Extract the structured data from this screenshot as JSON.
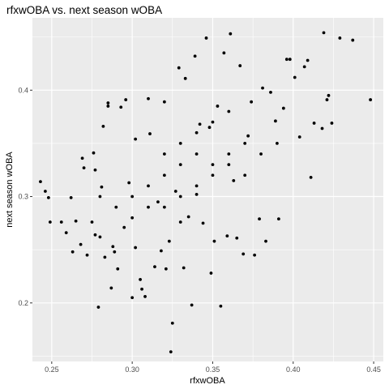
{
  "chart_data": {
    "type": "scatter",
    "title": "rfxwOBA vs. next season wOBA",
    "xlabel": "rfxwOBA",
    "ylabel": "next season wOBA",
    "xlim": [
      0.238,
      0.456
    ],
    "ylim": [
      0.145,
      0.468
    ],
    "xticks": [
      0.25,
      0.3,
      0.35,
      0.4,
      0.45
    ],
    "xtick_labels": [
      "0.25",
      "0.30",
      "0.35",
      "0.40",
      "0.45"
    ],
    "yticks": [
      0.2,
      0.3,
      0.4
    ],
    "ytick_labels": [
      "0.2",
      "0.3",
      "0.4"
    ],
    "grid": true,
    "background": "#ebebeb",
    "grid_color": "#ffffff",
    "point_color": "#000000",
    "points": [
      [
        0.243,
        0.314
      ],
      [
        0.246,
        0.305
      ],
      [
        0.248,
        0.299
      ],
      [
        0.249,
        0.276
      ],
      [
        0.256,
        0.276
      ],
      [
        0.259,
        0.266
      ],
      [
        0.262,
        0.299
      ],
      [
        0.263,
        0.248
      ],
      [
        0.265,
        0.277
      ],
      [
        0.268,
        0.255
      ],
      [
        0.269,
        0.336
      ],
      [
        0.27,
        0.327
      ],
      [
        0.272,
        0.245
      ],
      [
        0.275,
        0.276
      ],
      [
        0.276,
        0.341
      ],
      [
        0.277,
        0.325
      ],
      [
        0.277,
        0.264
      ],
      [
        0.279,
        0.196
      ],
      [
        0.28,
        0.262
      ],
      [
        0.281,
        0.309
      ],
      [
        0.282,
        0.366
      ],
      [
        0.283,
        0.243
      ],
      [
        0.285,
        0.385
      ],
      [
        0.285,
        0.388
      ],
      [
        0.287,
        0.214
      ],
      [
        0.288,
        0.253
      ],
      [
        0.289,
        0.248
      ],
      [
        0.291,
        0.232
      ],
      [
        0.293,
        0.384
      ],
      [
        0.295,
        0.271
      ],
      [
        0.296,
        0.391
      ],
      [
        0.298,
        0.313
      ],
      [
        0.3,
        0.205
      ],
      [
        0.302,
        0.354
      ],
      [
        0.302,
        0.252
      ],
      [
        0.305,
        0.222
      ],
      [
        0.306,
        0.213
      ],
      [
        0.308,
        0.206
      ],
      [
        0.31,
        0.392
      ],
      [
        0.311,
        0.359
      ],
      [
        0.314,
        0.234
      ],
      [
        0.316,
        0.295
      ],
      [
        0.318,
        0.249
      ],
      [
        0.32,
        0.389
      ],
      [
        0.321,
        0.232
      ],
      [
        0.323,
        0.258
      ],
      [
        0.324,
        0.154
      ],
      [
        0.325,
        0.181
      ],
      [
        0.327,
        0.305
      ],
      [
        0.329,
        0.421
      ],
      [
        0.33,
        0.276
      ],
      [
        0.332,
        0.233
      ],
      [
        0.333,
        0.411
      ],
      [
        0.335,
        0.281
      ],
      [
        0.337,
        0.198
      ],
      [
        0.339,
        0.432
      ],
      [
        0.34,
        0.302
      ],
      [
        0.342,
        0.368
      ],
      [
        0.344,
        0.275
      ],
      [
        0.346,
        0.449
      ],
      [
        0.348,
        0.365
      ],
      [
        0.349,
        0.228
      ],
      [
        0.351,
        0.258
      ],
      [
        0.353,
        0.385
      ],
      [
        0.355,
        0.197
      ],
      [
        0.357,
        0.435
      ],
      [
        0.359,
        0.263
      ],
      [
        0.361,
        0.453
      ],
      [
        0.363,
        0.315
      ],
      [
        0.365,
        0.261
      ],
      [
        0.367,
        0.423
      ],
      [
        0.369,
        0.246
      ],
      [
        0.372,
        0.357
      ],
      [
        0.374,
        0.389
      ],
      [
        0.376,
        0.245
      ],
      [
        0.379,
        0.279
      ],
      [
        0.381,
        0.402
      ],
      [
        0.383,
        0.258
      ],
      [
        0.386,
        0.398
      ],
      [
        0.389,
        0.371
      ],
      [
        0.391,
        0.279
      ],
      [
        0.394,
        0.383
      ],
      [
        0.396,
        0.429
      ],
      [
        0.398,
        0.429
      ],
      [
        0.401,
        0.412
      ],
      [
        0.404,
        0.356
      ],
      [
        0.407,
        0.422
      ],
      [
        0.409,
        0.428
      ],
      [
        0.411,
        0.318
      ],
      [
        0.413,
        0.369
      ],
      [
        0.418,
        0.364
      ],
      [
        0.419,
        0.454
      ],
      [
        0.421,
        0.391
      ],
      [
        0.422,
        0.395
      ],
      [
        0.424,
        0.369
      ],
      [
        0.429,
        0.449
      ],
      [
        0.437,
        0.447
      ],
      [
        0.448,
        0.391
      ],
      [
        0.3,
        0.3
      ],
      [
        0.31,
        0.31
      ],
      [
        0.32,
        0.32
      ],
      [
        0.33,
        0.33
      ],
      [
        0.34,
        0.34
      ],
      [
        0.35,
        0.33
      ],
      [
        0.36,
        0.34
      ],
      [
        0.37,
        0.35
      ],
      [
        0.32,
        0.29
      ],
      [
        0.33,
        0.3
      ],
      [
        0.31,
        0.29
      ],
      [
        0.34,
        0.31
      ],
      [
        0.35,
        0.32
      ],
      [
        0.36,
        0.33
      ],
      [
        0.37,
        0.32
      ],
      [
        0.38,
        0.34
      ],
      [
        0.39,
        0.35
      ],
      [
        0.3,
        0.28
      ],
      [
        0.29,
        0.29
      ],
      [
        0.28,
        0.3
      ],
      [
        0.32,
        0.34
      ],
      [
        0.33,
        0.35
      ],
      [
        0.34,
        0.36
      ],
      [
        0.35,
        0.37
      ],
      [
        0.36,
        0.38
      ]
    ]
  }
}
